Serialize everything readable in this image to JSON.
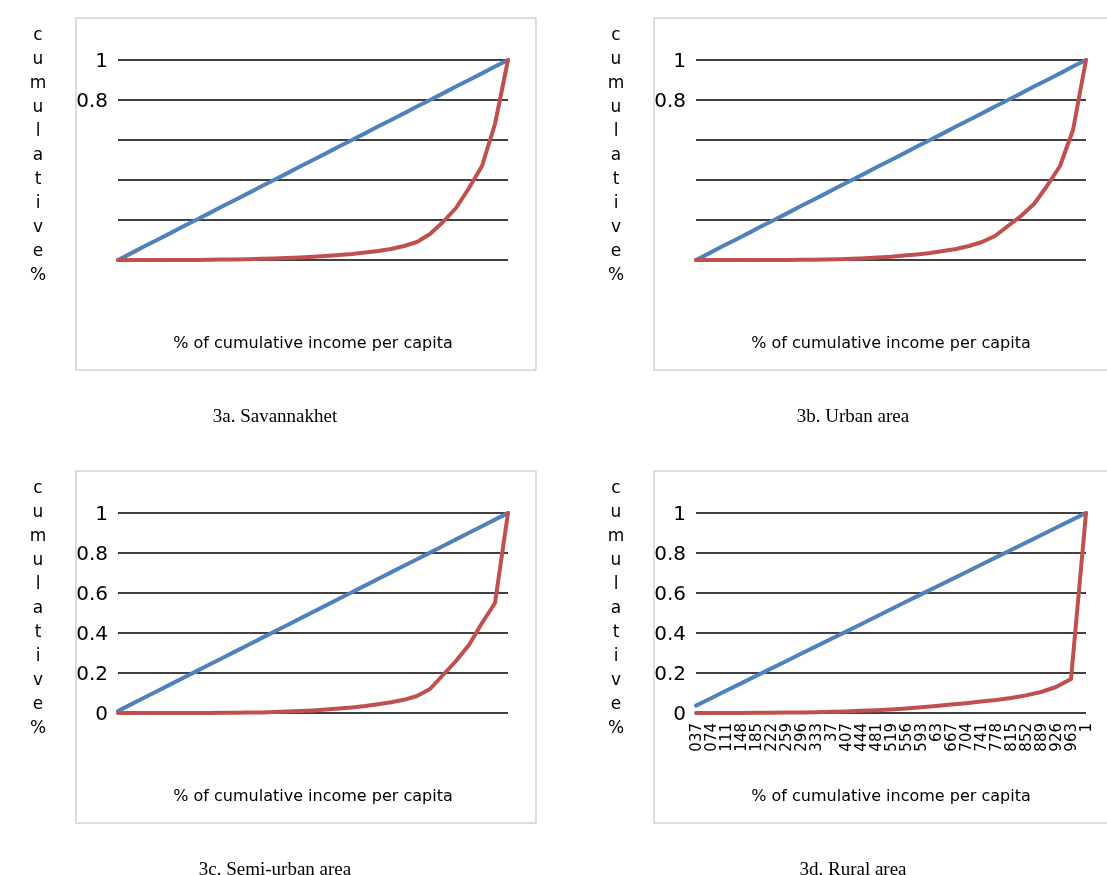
{
  "chart_data": [
    {
      "type": "line",
      "title": "3a. Savannakhet",
      "xlabel": "% of cumulative income per capita",
      "ylabel": "cumulative %",
      "categories": [
        null,
        null,
        null,
        null,
        null,
        null,
        null,
        null,
        null,
        null,
        null,
        null,
        null,
        null,
        null,
        null,
        null,
        null,
        null,
        null,
        null,
        null,
        null,
        null,
        null,
        null,
        null,
        null,
        null,
        null,
        null
      ],
      "ylim": [
        0,
        1
      ],
      "yticks": [
        {
          "value": 0,
          "label": null
        },
        {
          "value": 0.2,
          "label": null
        },
        {
          "value": 0.4,
          "label": null
        },
        {
          "value": 0.6,
          "label": null
        },
        0.8,
        1
      ],
      "grid": "y",
      "series": [
        {
          "color": "#4f81bd",
          "values": [
            0,
            0.033,
            0.067,
            0.1,
            0.133,
            0.167,
            0.2,
            0.233,
            0.267,
            0.3,
            0.333,
            0.367,
            0.4,
            0.433,
            0.467,
            0.5,
            0.533,
            0.567,
            0.6,
            0.633,
            0.667,
            0.7,
            0.733,
            0.767,
            0.8,
            0.833,
            0.867,
            0.9,
            0.933,
            0.967,
            1
          ]
        },
        {
          "color": "#c0504d",
          "values": [
            0,
            0,
            0,
            0,
            0,
            0,
            0,
            0.001,
            0.002,
            0.003,
            0.004,
            0.006,
            0.008,
            0.01,
            0.013,
            0.016,
            0.02,
            0.025,
            0.03,
            0.037,
            0.045,
            0.055,
            0.07,
            0.09,
            0.13,
            0.19,
            0.26,
            0.36,
            0.47,
            0.68,
            1
          ]
        }
      ]
    },
    {
      "type": "line",
      "title": "3b. Urban area",
      "xlabel": "% of cumulative income per capita",
      "ylabel": "cumulative %",
      "categories": [
        null,
        null,
        null,
        null,
        null,
        null,
        null,
        null,
        null,
        null,
        null,
        null,
        null,
        null,
        null,
        null,
        null,
        null,
        null,
        null,
        null,
        null,
        null,
        null,
        null,
        null,
        null,
        null,
        null,
        null,
        null
      ],
      "ylim": [
        0,
        1
      ],
      "yticks": [
        {
          "value": 0,
          "label": null
        },
        {
          "value": 0.2,
          "label": null
        },
        {
          "value": 0.4,
          "label": null
        },
        {
          "value": 0.6,
          "label": null
        },
        0.8,
        1
      ],
      "grid": "y",
      "series": [
        {
          "color": "#4f81bd",
          "values": [
            0,
            0.033,
            0.067,
            0.1,
            0.133,
            0.167,
            0.2,
            0.233,
            0.267,
            0.3,
            0.333,
            0.367,
            0.4,
            0.433,
            0.467,
            0.5,
            0.533,
            0.567,
            0.6,
            0.633,
            0.667,
            0.7,
            0.733,
            0.767,
            0.8,
            0.833,
            0.867,
            0.9,
            0.933,
            0.967,
            1
          ]
        },
        {
          "color": "#c0504d",
          "values": [
            0,
            0,
            0,
            0,
            0,
            0,
            0,
            0,
            0.001,
            0.001,
            0.002,
            0.004,
            0.006,
            0.009,
            0.012,
            0.016,
            0.022,
            0.028,
            0.035,
            0.045,
            0.055,
            0.07,
            0.09,
            0.12,
            0.17,
            0.22,
            0.28,
            0.37,
            0.47,
            0.65,
            1
          ]
        }
      ]
    },
    {
      "type": "line",
      "title": "3c. Semi-urban area",
      "xlabel": "% of cumulative income per capita",
      "ylabel": "cumulative %",
      "categories": [
        null,
        null,
        null,
        null,
        null,
        null,
        null,
        null,
        null,
        null,
        null,
        null,
        null,
        null,
        null,
        null,
        null,
        null,
        null,
        null,
        null,
        null,
        null,
        null,
        null,
        null,
        null,
        null,
        null,
        null,
        null
      ],
      "ylim": [
        0,
        1
      ],
      "yticks": [
        0,
        0.2,
        0.4,
        0.6,
        0.8,
        1
      ],
      "grid": "y",
      "series": [
        {
          "color": "#4f81bd",
          "values": [
            0.01,
            0.043,
            0.076,
            0.109,
            0.142,
            0.175,
            0.208,
            0.241,
            0.274,
            0.307,
            0.34,
            0.373,
            0.406,
            0.439,
            0.472,
            0.505,
            0.538,
            0.571,
            0.604,
            0.637,
            0.67,
            0.703,
            0.736,
            0.769,
            0.802,
            0.835,
            0.868,
            0.901,
            0.934,
            0.967,
            1
          ]
        },
        {
          "color": "#c0504d",
          "values": [
            0,
            0,
            0,
            0,
            0,
            0,
            0,
            0,
            0.001,
            0.001,
            0.002,
            0.003,
            0.005,
            0.007,
            0.01,
            0.013,
            0.017,
            0.022,
            0.028,
            0.035,
            0.044,
            0.054,
            0.066,
            0.085,
            0.12,
            0.19,
            0.26,
            0.34,
            0.45,
            0.55,
            1
          ]
        }
      ]
    },
    {
      "type": "line",
      "title": "3d. Rural area",
      "xlabel": "% of cumulative income per capita",
      "ylabel": "cumulative %",
      "categories": [
        "037",
        "074",
        "111",
        "148",
        "185",
        "222",
        "259",
        "296",
        "333",
        "37",
        "407",
        "444",
        "481",
        "519",
        "556",
        "593",
        "63",
        "667",
        "704",
        "741",
        "778",
        "815",
        "852",
        "889",
        "926",
        "963",
        "1"
      ],
      "ylim": [
        0,
        1
      ],
      "yticks": [
        0,
        0.2,
        0.4,
        0.6,
        0.8,
        1
      ],
      "grid": "y",
      "series": [
        {
          "color": "#4f81bd",
          "values": [
            0.037,
            0.074,
            0.111,
            0.148,
            0.185,
            0.222,
            0.259,
            0.296,
            0.333,
            0.37,
            0.407,
            0.444,
            0.481,
            0.519,
            0.556,
            0.593,
            0.63,
            0.667,
            0.704,
            0.741,
            0.778,
            0.815,
            0.852,
            0.889,
            0.926,
            0.963,
            1
          ]
        },
        {
          "color": "#c0504d",
          "values": [
            0,
            0,
            0,
            0,
            0.001,
            0.001,
            0.002,
            0.003,
            0.004,
            0.006,
            0.008,
            0.011,
            0.014,
            0.018,
            0.023,
            0.029,
            0.035,
            0.042,
            0.049,
            0.057,
            0.065,
            0.075,
            0.088,
            0.105,
            0.13,
            0.17,
            1
          ]
        }
      ]
    }
  ]
}
